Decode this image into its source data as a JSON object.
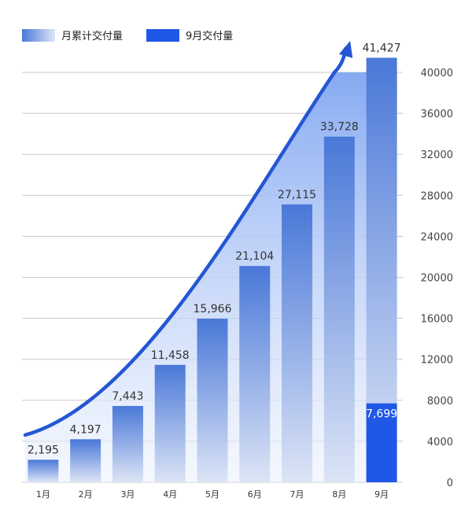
{
  "chart_data": {
    "type": "bar",
    "categories": [
      "1月",
      "2月",
      "3月",
      "4月",
      "5月",
      "6月",
      "7月",
      "8月",
      "9月"
    ],
    "series": [
      {
        "name": "月累计交付量",
        "values": [
          2195,
          4197,
          7443,
          11458,
          15966,
          21104,
          27115,
          33728,
          41427
        ],
        "labels": [
          "2,195",
          "4,197",
          "7,443",
          "11,458",
          "15,966",
          "21,104",
          "27,115",
          "33,728",
          "41,427"
        ]
      },
      {
        "name": "9月交付量",
        "values": [
          null,
          null,
          null,
          null,
          null,
          null,
          null,
          null,
          7699
        ],
        "labels": [
          "",
          "",
          "",
          "",
          "",
          "",
          "",
          "",
          "7,699"
        ]
      }
    ],
    "yticks": [
      0,
      4000,
      8000,
      12000,
      16000,
      20000,
      24000,
      28000,
      32000,
      36000,
      40000
    ],
    "ylim": [
      0,
      40000
    ],
    "grid": true,
    "legend_position": "top-left",
    "y_axis_side": "right",
    "annotation": "upward trend arrow",
    "colors": {
      "cumulative_top": "#4a78d8",
      "cumulative_bottom": "#dde5f6",
      "september": "#1f57e6",
      "area_top": "#86aaf2",
      "area_bottom": "#eef3fd",
      "arrow": "#2456d4",
      "grid": "#c8c8c8",
      "last_bar_label": "#ffffff"
    }
  }
}
